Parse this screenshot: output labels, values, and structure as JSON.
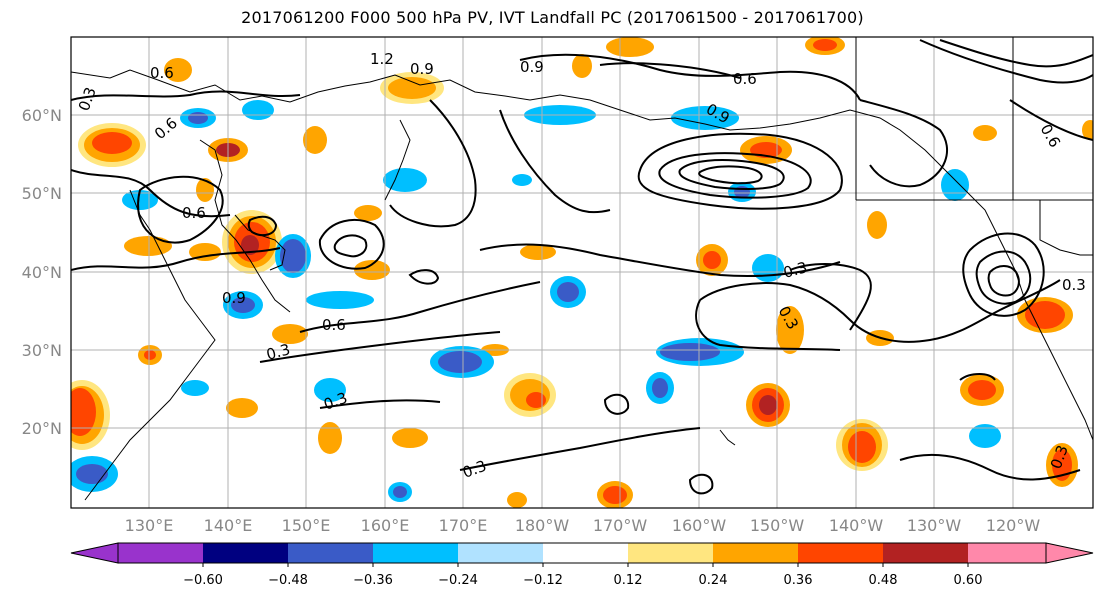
{
  "title": "2017061200 F000 500 hPa PV, IVT Landfall PC (2017061500 - 2017061700)",
  "map": {
    "lat_labels": [
      "60°N",
      "50°N",
      "40°N",
      "30°N",
      "20°N"
    ],
    "lon_labels": [
      "130°E",
      "140°E",
      "150°E",
      "160°E",
      "170°E",
      "180°W",
      "170°W",
      "160°W",
      "150°W",
      "140°W",
      "130°W",
      "120°W"
    ],
    "label_color": "#888888",
    "grid_color": "#b0b0b0",
    "contour_color": "#000000"
  },
  "colorbar": {
    "ticks": [
      "−0.60",
      "−0.48",
      "−0.36",
      "−0.24",
      "−0.12",
      "0.12",
      "0.24",
      "0.36",
      "0.48",
      "0.60"
    ],
    "colors": [
      "#9933cc",
      "#000080",
      "#3a5bc7",
      "#00bfff",
      "#b0e2ff",
      "#ffffff",
      "#ffe680",
      "#ffa500",
      "#ff4500",
      "#b22222",
      "#ff88aa"
    ]
  },
  "pv_contour_labels": [
    {
      "text": "0.6"
    },
    {
      "text": "0.6"
    },
    {
      "text": "0.6"
    },
    {
      "text": "0.9"
    },
    {
      "text": "0.9"
    },
    {
      "text": "1.2"
    },
    {
      "text": "0.9"
    },
    {
      "text": "0.3"
    },
    {
      "text": "0.6"
    },
    {
      "text": "0.9"
    },
    {
      "text": "0.3"
    },
    {
      "text": "0.3"
    },
    {
      "text": "0.3"
    },
    {
      "text": "0.3"
    },
    {
      "text": "0.3"
    },
    {
      "text": "0.3"
    },
    {
      "text": "0.6"
    },
    {
      "text": "0.6"
    },
    {
      "text": "0.3"
    }
  ]
}
